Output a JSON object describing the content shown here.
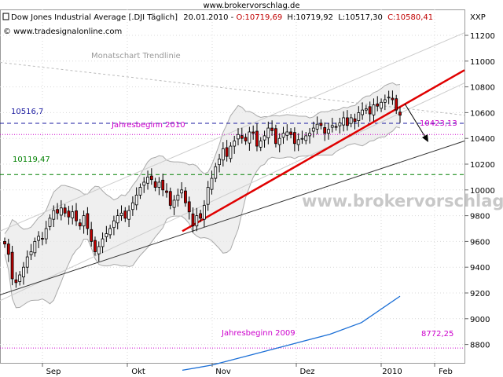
{
  "site_header": "www.brokervorschlag.de",
  "header": {
    "title_prefix": "Dow Jones Industrial Average [.DJI  Täglich]",
    "date": "20.01.2010",
    "ohlc_open": "O:10719,69",
    "ohlc_high": "H:10719,92",
    "ohlc_low": "L:10517,30",
    "ohlc_close": "C:10580,41",
    "copyright": "© www.tradesignalonline.com",
    "symbol_right": "XXP"
  },
  "watermark": "www.brokervorschlag",
  "colors": {
    "up": "#ffffff",
    "down": "#c00000",
    "trend_red": "#e00000",
    "trend_black": "#333333",
    "blue_dash": "#1a1aa0",
    "green_dash": "#008000",
    "magenta": "#cc00cc",
    "blue_line": "#1b6fd6",
    "band": "#aaaaaa",
    "band_fill": "#e8e8e8"
  },
  "annotations": {
    "monatschart": "Monatschart Trendlinie",
    "level_10516": "10516,7",
    "jahresbeginn_2010": "Jahresbeginn 2010",
    "level_10119": "10119,47",
    "target_10423": "10423,13",
    "jahresbeginn_2009": "Jahresbeginn 2009",
    "level_8772": "8772,25"
  },
  "chart_data": {
    "type": "candlestick",
    "yticks": [
      8800,
      9000,
      9200,
      9400,
      9600,
      9800,
      10000,
      10200,
      10400,
      10600,
      10800,
      11000,
      11200
    ],
    "ytick_labels": [
      "8800",
      "9000",
      "9200",
      "9400",
      "9600",
      "9800",
      "10000",
      "10200",
      "10400",
      "10600",
      "10800",
      "11000",
      "11200"
    ],
    "ylim": [
      8620,
      11380
    ],
    "xlabels": [
      "Sep",
      "Okt",
      "Nov",
      "Dez",
      "2010",
      "Feb"
    ],
    "closes": [
      9580,
      9500,
      9310,
      9280,
      9340,
      9400,
      9480,
      9520,
      9600,
      9640,
      9620,
      9700,
      9780,
      9840,
      9820,
      9860,
      9820,
      9790,
      9830,
      9760,
      9720,
      9800,
      9700,
      9600,
      9520,
      9560,
      9620,
      9660,
      9700,
      9760,
      9800,
      9820,
      9780,
      9840,
      9900,
      9960,
      10020,
      10060,
      10100,
      10080,
      10020,
      10060,
      10000,
      9980,
      9880,
      9920,
      9960,
      10000,
      9900,
      9830,
      9720,
      9800,
      9780,
      9880,
      10020,
      10090,
      10180,
      10240,
      10320,
      10260,
      10340,
      10380,
      10430,
      10400,
      10380,
      10450,
      10440,
      10340,
      10380,
      10420,
      10480,
      10460,
      10360,
      10400,
      10440,
      10450,
      10430,
      10360,
      10390,
      10400,
      10420,
      10440,
      10480,
      10510,
      10500,
      10440,
      10470,
      10500,
      10490,
      10520,
      10560,
      10500,
      10560,
      10530,
      10600,
      10620,
      10630,
      10590,
      10660,
      10650,
      10680,
      10700,
      10720,
      10700,
      10620,
      10580
    ]
  }
}
